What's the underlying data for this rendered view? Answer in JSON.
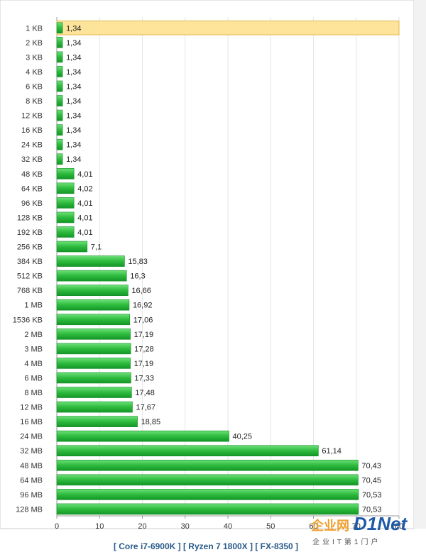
{
  "chart_data": {
    "type": "bar",
    "orientation": "horizontal",
    "categories": [
      "1 KB",
      "2 KB",
      "3 KB",
      "4 KB",
      "6 KB",
      "8 KB",
      "12 KB",
      "16 KB",
      "24 KB",
      "32 KB",
      "48 KB",
      "64 KB",
      "96 KB",
      "128 KB",
      "192 KB",
      "256 KB",
      "384 KB",
      "512 KB",
      "768 KB",
      "1 MB",
      "1536 KB",
      "2 MB",
      "3 MB",
      "4 MB",
      "6 MB",
      "8 MB",
      "12 MB",
      "16 MB",
      "24 MB",
      "32 MB",
      "48 MB",
      "64 MB",
      "96 MB",
      "128 MB"
    ],
    "values": [
      1.34,
      1.34,
      1.34,
      1.34,
      1.34,
      1.34,
      1.34,
      1.34,
      1.34,
      1.34,
      4.01,
      4.02,
      4.01,
      4.01,
      4.01,
      7.1,
      15.83,
      16.3,
      16.66,
      16.92,
      17.06,
      17.19,
      17.28,
      17.19,
      17.33,
      17.48,
      17.67,
      18.85,
      40.25,
      61.14,
      70.43,
      70.45,
      70.53,
      70.53
    ],
    "value_labels": [
      "1,34",
      "1,34",
      "1,34",
      "1,34",
      "1,34",
      "1,34",
      "1,34",
      "1,34",
      "1,34",
      "1,34",
      "4,01",
      "4,02",
      "4,01",
      "4,01",
      "4,01",
      "7,1",
      "15,83",
      "16,3",
      "16,66",
      "16,92",
      "17,06",
      "17,19",
      "17,28",
      "17,19",
      "17,33",
      "17,48",
      "17,67",
      "18,85",
      "40,25",
      "61,14",
      "70,43",
      "70,45",
      "70,53",
      "70,53"
    ],
    "xlim": [
      0,
      80
    ],
    "xticks": [
      0,
      10,
      20,
      30,
      40,
      50,
      60,
      70,
      80
    ],
    "grid": true,
    "highlighted_category": "1 KB",
    "legend": "[ Core i7-6900K ] [ Ryzen 7 1800X ] [ FX-8350 ]",
    "title": "",
    "xlabel": "",
    "ylabel": ""
  },
  "colors": {
    "bar_fill": "#2dbb3d",
    "bar_dark": "#0f8f22",
    "bar_light": "#6ee07a",
    "highlight_bg": "#fde49a",
    "highlight_border": "#e6b84a",
    "grid": "#e6e6e6",
    "legend_text": "#2a5a8a"
  },
  "watermark": {
    "cn": "企业网",
    "en": "D1Net",
    "sub": "企业IT第1门户"
  }
}
